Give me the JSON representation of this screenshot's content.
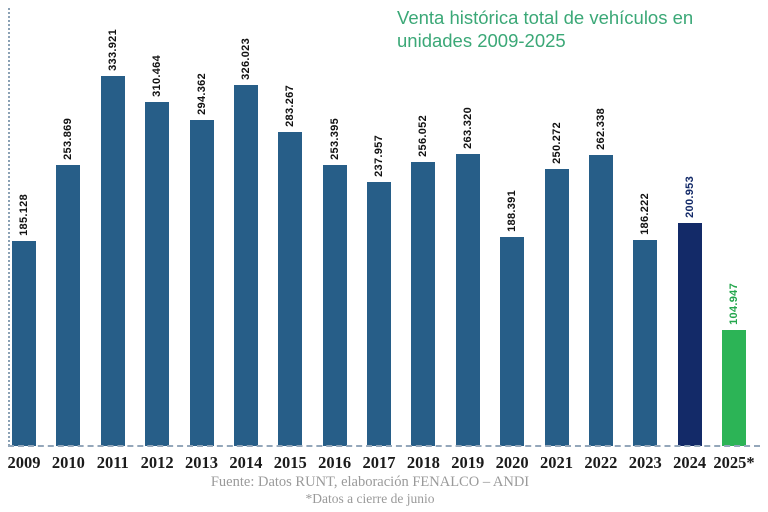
{
  "title": {
    "lines": [
      "Venta histórica total de vehículos en",
      "unidades 2009-2025"
    ],
    "full_text": "Venta histórica total de vehículos en unidades 2009-2025",
    "color": "#3BA877"
  },
  "chart_data": {
    "type": "bar",
    "title": "Venta histórica total de vehículos en unidades 2009-2025",
    "xlabel": "",
    "ylabel": "",
    "ylim": [
      0,
      333921
    ],
    "grid": false,
    "legend": "none",
    "categories": [
      "2009",
      "2010",
      "2011",
      "2012",
      "2013",
      "2014",
      "2015",
      "2016",
      "2017",
      "2018",
      "2019",
      "2020",
      "2021",
      "2022",
      "2023",
      "2024",
      "2025*"
    ],
    "values": [
      185128,
      253869,
      333921,
      310464,
      294362,
      326023,
      283267,
      253395,
      237957,
      256052,
      263320,
      188391,
      250272,
      262338,
      186222,
      200953,
      104947
    ],
    "value_labels": [
      "185.128",
      "253.869",
      "333.921",
      "310.464",
      "294.362",
      "326.023",
      "283.267",
      "253.395",
      "237.957",
      "256.052",
      "263.320",
      "188.391",
      "250.272",
      "262.338",
      "186.222",
      "200.953",
      "104.947"
    ],
    "bar_colors": {
      "default": "#275E88",
      "2024": "#132A68",
      "2025*": "#2CB456"
    },
    "label_colors": {
      "default": "#111111",
      "2024": "#132A68",
      "2025*": "#23A64C"
    },
    "axis_color": "#94a7ba"
  },
  "footer": {
    "source": "Fuente: Datos RUNT, elaboración FENALCO – ANDI",
    "note": "*Datos a cierre de junio"
  }
}
